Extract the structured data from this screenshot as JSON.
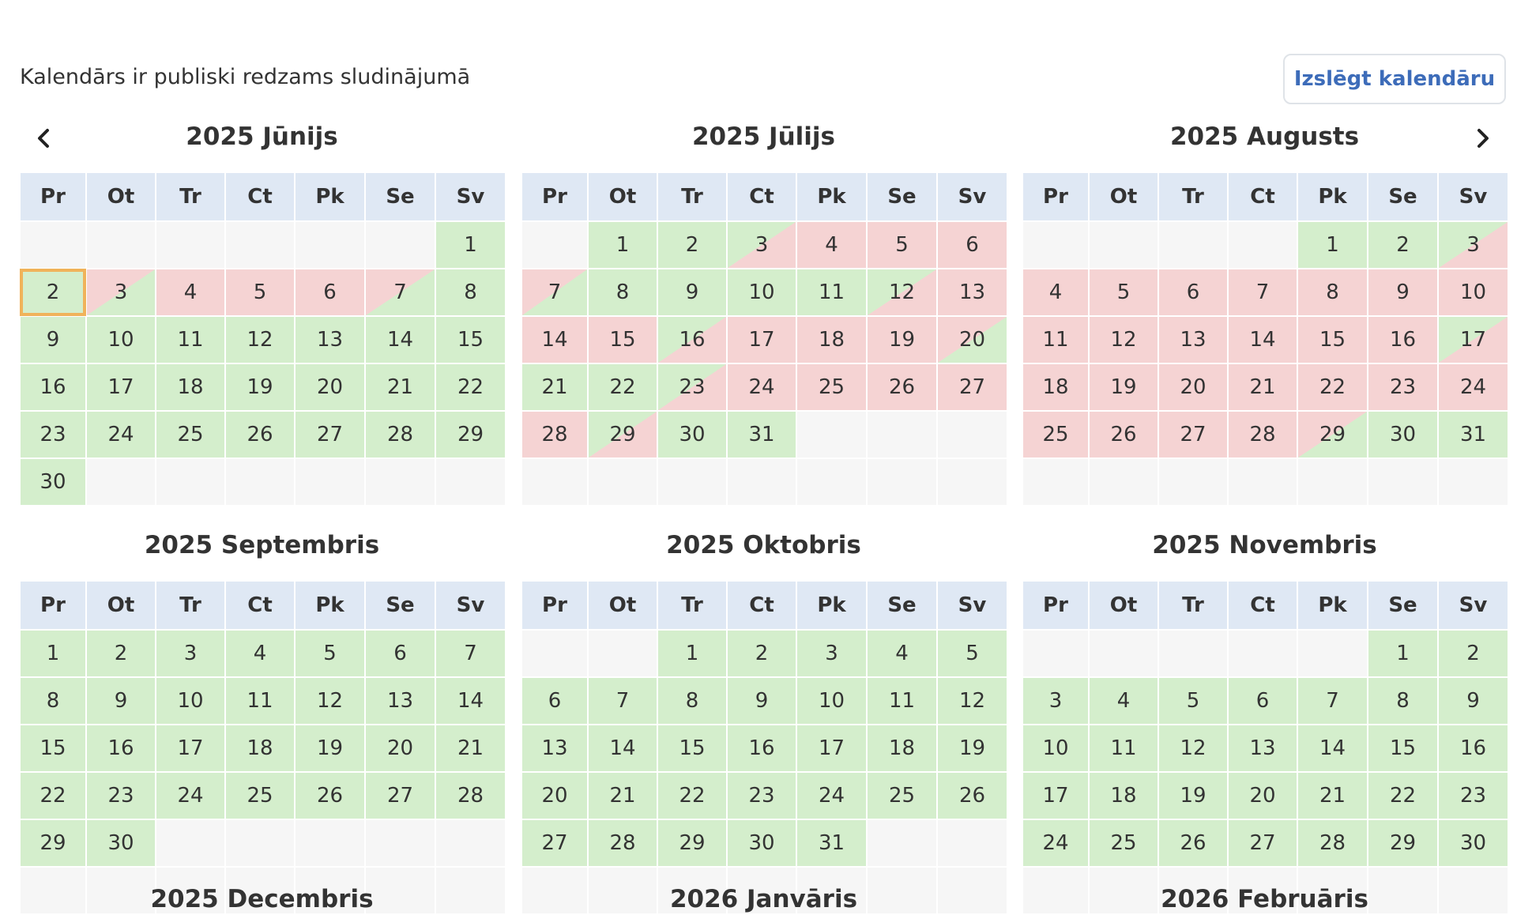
{
  "header": {
    "text": "Kalendārs ir publiski redzams sludinājumā",
    "toggle_label": "Izslēgt kalendāru"
  },
  "nav": {
    "prev_icon": "chevron-left-icon",
    "next_icon": "chevron-right-icon"
  },
  "colors": {
    "available": "#d4eecc",
    "booked": "#f5d3d3",
    "empty": "#f6f6f6",
    "header_bg": "#dfe8f4",
    "today_outline": "#f0b35a",
    "accent": "#3d6cb9"
  },
  "weekdays": [
    "Pr",
    "Ot",
    "Tr",
    "Ct",
    "Pk",
    "Se",
    "Sv"
  ],
  "legend_states": {
    "g": "available",
    "r": "booked",
    "gr": "available-to-booked",
    "rg": "booked-to-available",
    "e": "empty"
  },
  "months": [
    {
      "title": "2025 Jūnijs",
      "start_offset": 6,
      "days": 30,
      "states": "g g rg r r r rg g g g g g g g g g g g g g g g g g g g g g g g",
      "today": 2
    },
    {
      "title": "2025 Jūlijs",
      "start_offset": 1,
      "days": 31,
      "states": "g g gr r r r rg g g g g gr r r r gr r r r rg g g gr r r r r r gr g g"
    },
    {
      "title": "2025 Augusts",
      "start_offset": 4,
      "days": 31,
      "states": "g g gr r r r r r r r r r r r r r gr r r r r r r r r r r r rg g g"
    },
    {
      "title": "2025 Septembris",
      "start_offset": 0,
      "days": 30,
      "states": "g g g g g g g g g g g g g g g g g g g g g g g g g g g g g g"
    },
    {
      "title": "2025 Oktobris",
      "start_offset": 2,
      "days": 31,
      "states": "g g g g g g g g g g g g g g g g g g g g g g g g g g g g g g g"
    },
    {
      "title": "2025 Novembris",
      "start_offset": 5,
      "days": 30,
      "states": "g g g g g g g g g g g g g g g g g g g g g g g g g g g g g g"
    }
  ],
  "partial_months": [
    "2025 Decembris",
    "2026 Janvāris",
    "2026 Februāris"
  ]
}
